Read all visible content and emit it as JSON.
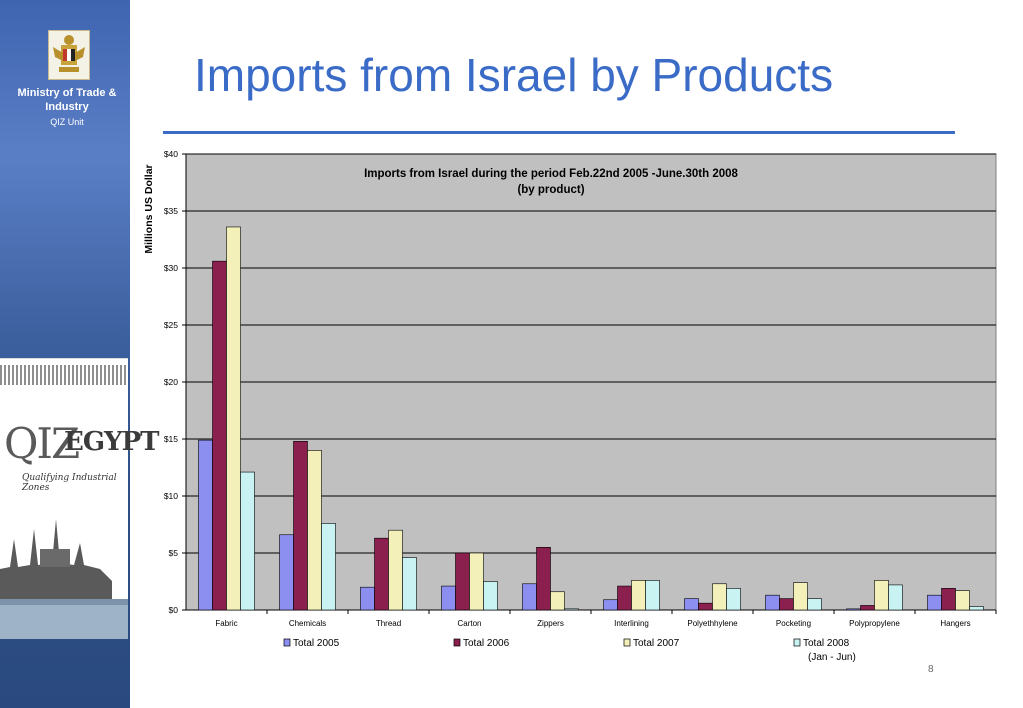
{
  "sidebar": {
    "ministry": "Ministry of Trade & Industry",
    "unit": "QIZ Unit",
    "logo_big": "QIZ",
    "logo_egypt": "EGYPT",
    "logo_sub": "Qualifying Industrial Zones",
    "colors": {
      "band_top": "#3f64b0",
      "band_bottom": "#2a4a7f"
    }
  },
  "slide": {
    "title": "Imports from Israel by Products",
    "title_color": "#3a6bc7",
    "page_number": "8"
  },
  "chart_data": {
    "type": "bar",
    "title_line1": "Imports from Israel during the period Feb.22nd 2005 -June.30th 2008",
    "title_line2": "(by product)",
    "ylabel": "Millions US Dollar",
    "xlabel": "",
    "ylim": [
      0,
      40
    ],
    "yticks": [
      "$0",
      "$5",
      "$10",
      "$15",
      "$20",
      "$25",
      "$30",
      "$35",
      "$40"
    ],
    "grid": true,
    "legend_position": "bottom",
    "categories": [
      "Fabric",
      "Chemicals",
      "Thread",
      "Carton",
      "Zippers",
      "Interlining",
      "Polyethhylene",
      "Pocketing",
      "Polypropylene",
      "Hangers"
    ],
    "series": [
      {
        "name": "Total 2005",
        "color": "#8c8ff0",
        "values": [
          14.9,
          6.6,
          2.0,
          2.1,
          2.3,
          0.9,
          1.0,
          1.3,
          0.1,
          1.3
        ]
      },
      {
        "name": "Total 2006",
        "color": "#8b1f4e",
        "values": [
          30.6,
          14.8,
          6.3,
          5.0,
          5.5,
          2.1,
          0.6,
          1.0,
          0.4,
          1.9
        ]
      },
      {
        "name": "Total 2007",
        "color": "#f3f1b9",
        "values": [
          33.6,
          14.0,
          7.0,
          5.0,
          1.6,
          2.6,
          2.3,
          2.4,
          2.6,
          1.7
        ]
      },
      {
        "name": "Total 2008",
        "name_line2": "(Jan - Jun)",
        "color": "#c9f3f3",
        "values": [
          12.1,
          7.6,
          4.6,
          2.5,
          0.1,
          2.6,
          1.9,
          1.0,
          2.2,
          0.3
        ]
      }
    ],
    "plot_bg": "#c0c0c0"
  }
}
